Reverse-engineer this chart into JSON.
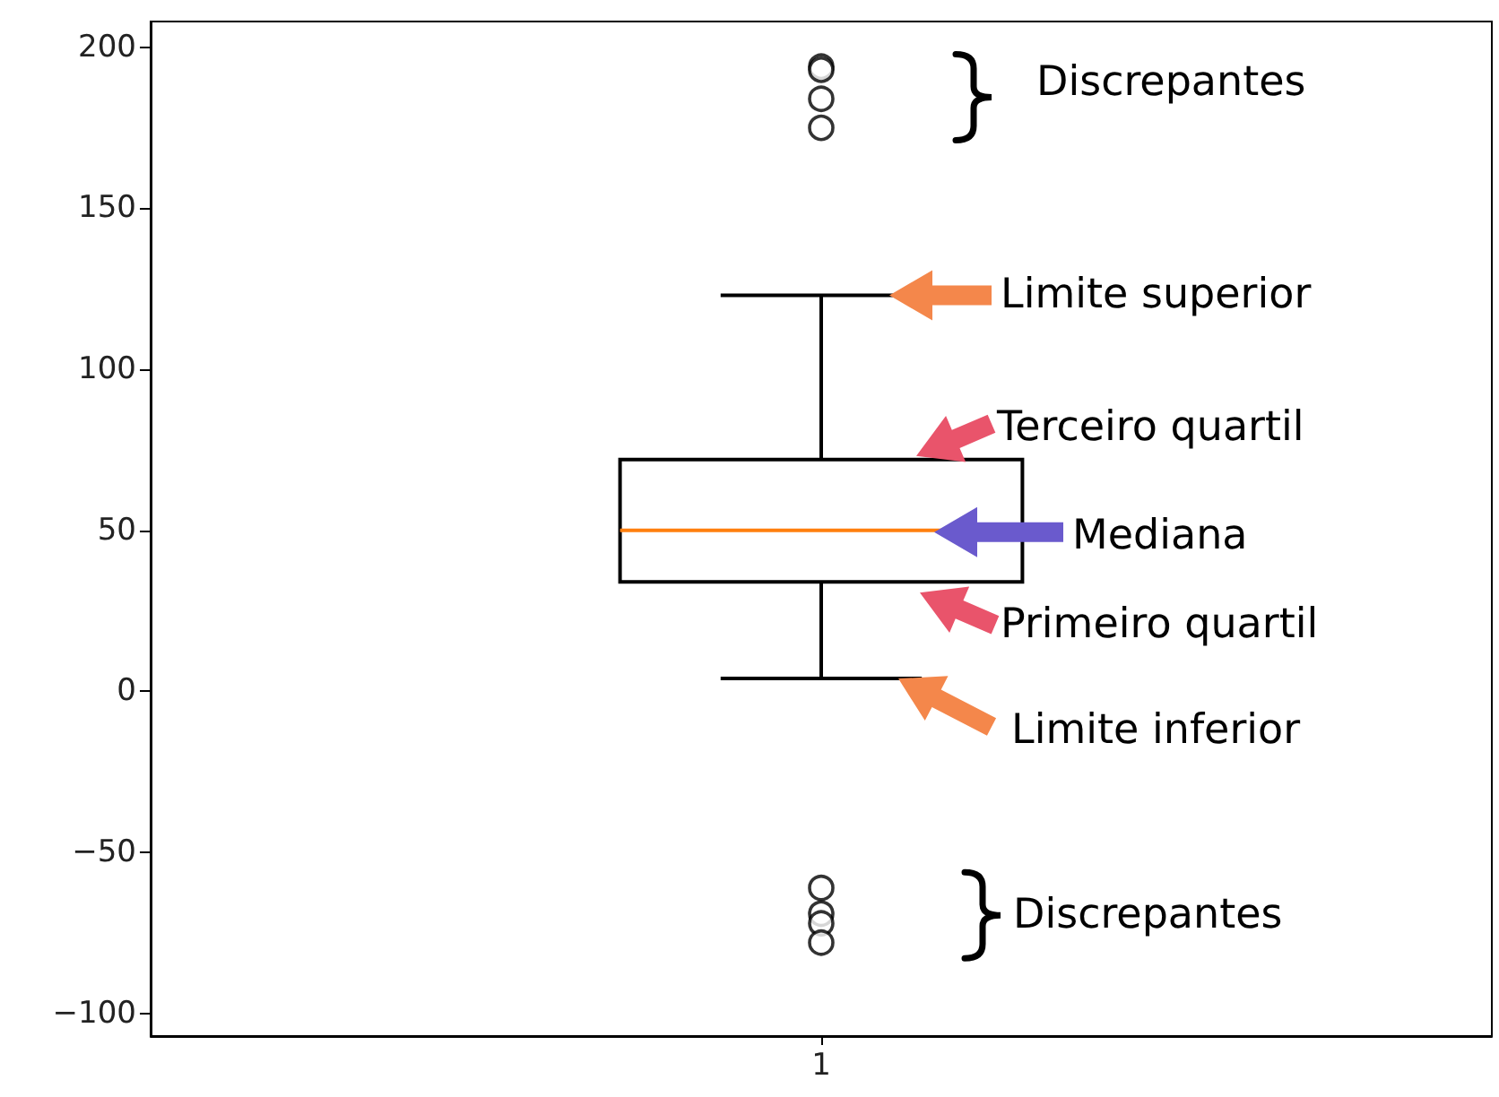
{
  "chart_data": {
    "type": "box",
    "categories": [
      "1"
    ],
    "boxes": [
      {
        "low": 4,
        "q1": 34,
        "median": 50,
        "q3": 72,
        "high": 123,
        "outliers": [
          194,
          193,
          184,
          175,
          -61,
          -69,
          -72,
          -78
        ]
      }
    ],
    "ylim": [
      -107,
      208
    ],
    "yticks": [
      {
        "value": -100,
        "label": "−100"
      },
      {
        "value": -50,
        "label": "−50"
      },
      0,
      50,
      100,
      150,
      200
    ],
    "grid": false,
    "annotations": [
      "Discrepantes",
      "Limite superior",
      "Terceiro quartil",
      "Mediana",
      "Primeiro quartil",
      "Limite inferior",
      "Discrepantes"
    ]
  }
}
